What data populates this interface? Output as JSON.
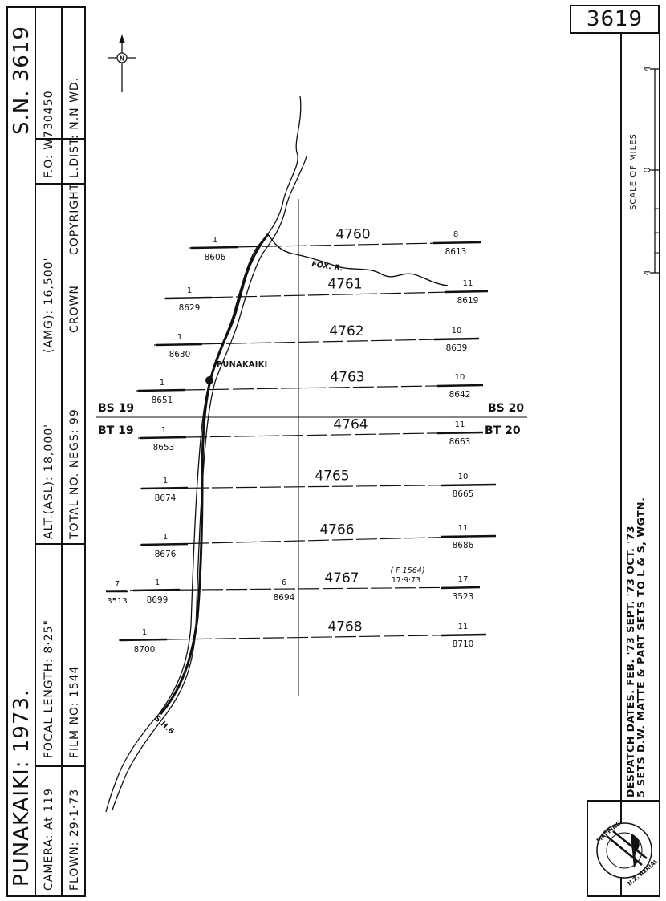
{
  "title_block": {
    "place_year": "PUNAKAIKI:  1973.",
    "sn": "S.N. 3619",
    "camera": "CAMERA:  At  119",
    "flown": "FLOWN:  29·1·73",
    "focal_length": "FOCAL  LENGTH:  8·25\"",
    "film_no": "FILM  NO:   1544",
    "altitude": "ALT.(ASL):  18,000'",
    "total_negs": "TOTAL  NO.  NEGS:  99",
    "amg": "(AMG): 16,500'",
    "crown": "CROWN",
    "copyright": "COPYRIGHT",
    "fo": "F.O:   W730450",
    "ldist": "L.DIST:  N.N     WD."
  },
  "right_panel": {
    "sheet_no": "3619",
    "scale_label": "SCALE  OF  MILES",
    "scale_ticks": [
      "4",
      "0",
      "4"
    ],
    "despatch_line1": "DESPATCH  DATES. FEB. '73   SEPT. '73   OCT. '73",
    "despatch_line2": "5   SETS   D.W.  MATTE     &    PART   SETS  TO  L  &  S,  WGTN.",
    "logo_text": "N.Z. AERIAL MAPPING LTD. HASTINGS"
  },
  "map": {
    "north_label": "N",
    "place_label": "PUNAKAIKI",
    "river_label": "FOX. R.",
    "road_label": "S.H.6",
    "strip_markers": [
      {
        "left": "BS 19",
        "right": "BS 20"
      },
      {
        "left": "BT 19",
        "right": "BT 20"
      }
    ],
    "runs": [
      {
        "run": "4760",
        "start_no": "1",
        "start_frame": "8606",
        "end_no": "8",
        "end_frame": "8613"
      },
      {
        "run": "4761",
        "start_no": "1",
        "start_frame": "8629",
        "end_no": "11",
        "end_frame": "8619"
      },
      {
        "run": "4762",
        "start_no": "1",
        "start_frame": "8630",
        "end_no": "10",
        "end_frame": "8639"
      },
      {
        "run": "4763",
        "start_no": "1",
        "start_frame": "8651",
        "end_no": "10",
        "end_frame": "8642"
      },
      {
        "run": "4764",
        "start_no": "1",
        "start_frame": "8653",
        "end_no": "11",
        "end_frame": "8663"
      },
      {
        "run": "4765",
        "start_no": "1",
        "start_frame": "8674",
        "end_no": "10",
        "end_frame": "8665"
      },
      {
        "run": "4766",
        "start_no": "1",
        "start_frame": "8676",
        "end_no": "11",
        "end_frame": "8686"
      },
      {
        "run": "4767",
        "start_no": "1",
        "start_frame": "8699",
        "end_no": "17",
        "end_frame": "3523",
        "extra_left_no": "7",
        "extra_left_frame": "3513",
        "mid_no": "6",
        "mid_frame": "8694",
        "note_film": "( F 1564)",
        "note_date": "17·9·73"
      },
      {
        "run": "4768",
        "start_no": "1",
        "start_frame": "8700",
        "end_no": "11",
        "end_frame": "8710"
      }
    ]
  }
}
